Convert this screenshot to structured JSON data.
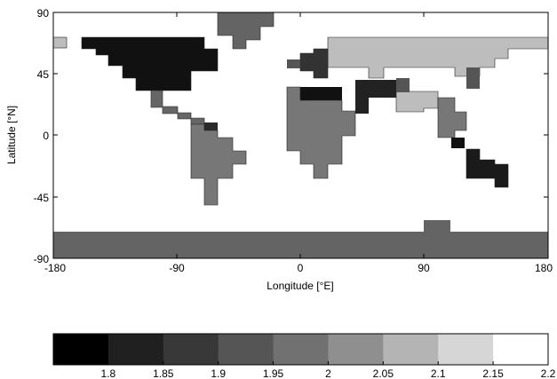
{
  "map": {
    "y_axis_label": "Latitude [°N]",
    "x_axis_label": "Longitude [°E]",
    "y_ticks": [
      "90",
      "45",
      "0",
      "-45",
      "-90"
    ],
    "x_ticks": [
      "-180",
      "-90",
      "0",
      "90",
      "180"
    ],
    "xlim": [
      -180,
      180
    ],
    "ylim": [
      -90,
      90
    ],
    "ocean_color": "#ffffff"
  },
  "colorbar": {
    "labels": [
      "1.8",
      "1.85",
      "1.9",
      "1.95",
      "2",
      "2.05",
      "2.1",
      "2.15",
      "2.2"
    ],
    "colors": [
      "#000000",
      "#202020",
      "#383838",
      "#555555",
      "#717171",
      "#8f8f8f",
      "#b4b4b4",
      "#d6d6d6",
      "#ffffff"
    ]
  }
}
